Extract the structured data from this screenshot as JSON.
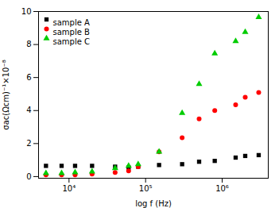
{
  "chart_data": {
    "type": "scatter",
    "xlabel": "log f (Hz)",
    "ylabel": "σac(Ωcm)⁻¹×10⁻⁸",
    "log": "x",
    "xlim": [
      4000,
      4000000
    ],
    "xticks": [
      {
        "value": 10000,
        "label": "10⁴"
      },
      {
        "value": 100000,
        "label": "10⁵"
      },
      {
        "value": 1000000,
        "label": "10⁶"
      }
    ],
    "ylim": [
      -0.1,
      10
    ],
    "yticks": [
      0,
      2,
      4,
      6,
      8,
      10
    ],
    "legend": "upper left",
    "x": [
      5000,
      8000,
      12000,
      20000,
      40000,
      60000,
      80000,
      150000,
      300000,
      500000,
      800000,
      1500000,
      2000000,
      3000000
    ],
    "series": [
      {
        "name": "sample A",
        "color": "#000000",
        "marker": "square",
        "values": [
          0.65,
          0.65,
          0.65,
          0.65,
          0.6,
          0.55,
          0.6,
          0.7,
          0.75,
          0.9,
          0.95,
          1.15,
          1.25,
          1.3
        ]
      },
      {
        "name": "sample B",
        "color": "#ff0000",
        "marker": "circle",
        "values": [
          0.1,
          0.1,
          0.1,
          0.15,
          0.25,
          0.35,
          0.6,
          1.5,
          2.35,
          3.5,
          4.0,
          4.35,
          4.8,
          5.1
        ]
      },
      {
        "name": "sample C",
        "color": "#00cc00",
        "marker": "triangle",
        "values": [
          0.2,
          0.2,
          0.25,
          0.3,
          0.5,
          0.65,
          0.75,
          1.5,
          3.85,
          5.6,
          7.45,
          8.2,
          8.75,
          9.65
        ]
      }
    ]
  }
}
